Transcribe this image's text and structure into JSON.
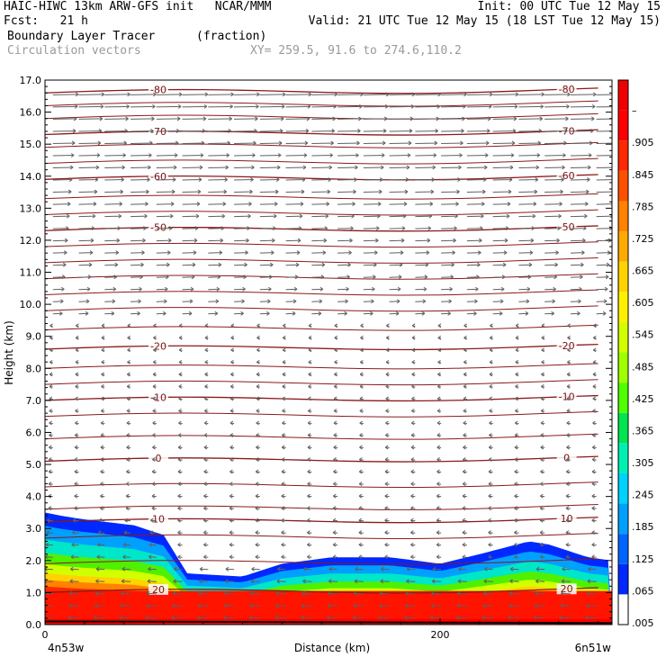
{
  "header": {
    "line1_left": "HAIC-HIWC 13km ARW-GFS init   NCAR/MMM",
    "line1_right": "Init: 00 UTC Tue 12 May 15",
    "line2_left": "Fcst:   21 h",
    "line2_right": "Valid: 21 UTC Tue 12 May 15 (18 LST Tue 12 May 15)",
    "line3_left": "Boundary Layer Tracer",
    "line3_units": "(fraction)",
    "line4_left": "Circulation vectors",
    "line4_right": "XY= 259.5, 91.6 to 274.6,110.2"
  },
  "chart_data": {
    "type": "heatmap",
    "title": "Boundary Layer Tracer",
    "units": "(fraction)",
    "xlabel": "Distance (km)",
    "ylabel": "Height (km)",
    "xlim": [
      0,
      287
    ],
    "ylim": [
      0,
      17
    ],
    "x_ticks": [
      "0",
      "200"
    ],
    "x_end_labels": {
      "left": "4n53w",
      "right": "6n51w"
    },
    "y_ticks": [
      "0.0",
      "1.0",
      "2.0",
      "3.0",
      "4.0",
      "5.0",
      "6.0",
      "7.0",
      "8.0",
      "9.0",
      "10.0",
      "11.0",
      "12.0",
      "13.0",
      "14.0",
      "15.0",
      "16.0",
      "17.0"
    ],
    "colorbar": {
      "labels": [
        ".005",
        ".065",
        ".125",
        ".185",
        ".245",
        ".305",
        ".365",
        ".425",
        ".485",
        ".545",
        ".605",
        ".665",
        ".725",
        ".785",
        ".845",
        ".905",
        "–"
      ],
      "colors": [
        "#ffffff",
        "#0028ff",
        "#0064ff",
        "#00a0ff",
        "#00d2ff",
        "#00f0b4",
        "#00e650",
        "#50ff00",
        "#a0ff00",
        "#d2ff00",
        "#fff000",
        "#ffd200",
        "#ffaa00",
        "#ff8200",
        "#ff5000",
        "#ff2800",
        "#ff0000",
        "#f00000"
      ]
    },
    "temperature_contours": [
      {
        "label": "-80",
        "height_km": 16.6
      },
      {
        "label": "-70",
        "height_km": 15.3
      },
      {
        "label": "-60",
        "height_km": 13.9
      },
      {
        "label": "-50",
        "height_km": 12.3
      },
      {
        "label": "-20",
        "height_km": 8.6
      },
      {
        "label": "-10",
        "height_km": 7.0
      },
      {
        "label": "0",
        "height_km": 5.1
      },
      {
        "label": "10",
        "height_km": 3.2
      },
      {
        "label": "20",
        "height_km": 1.0
      }
    ],
    "tracer_region": {
      "top_km": [
        3.5,
        3.4,
        3.3,
        3.1,
        2.8,
        1.6,
        1.5,
        1.9,
        2.1,
        2.1,
        1.9,
        2.2,
        2.6,
        2.5,
        2.3,
        2.1,
        2.0
      ],
      "x_km": [
        0,
        8,
        18,
        45,
        60,
        72,
        100,
        120,
        145,
        175,
        200,
        220,
        245,
        255,
        265,
        275,
        287
      ]
    }
  }
}
